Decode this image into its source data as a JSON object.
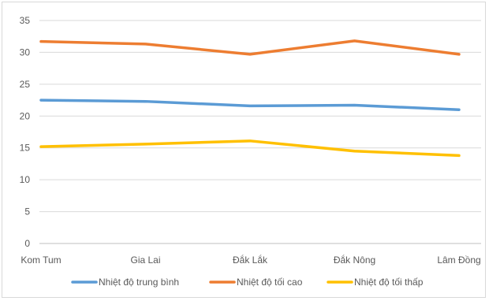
{
  "chart_data": {
    "type": "line",
    "categories": [
      "Kom Tum",
      "Gia Lai",
      "Đắk Lắk",
      "Đắk Nông",
      "Lâm Đồng"
    ],
    "series": [
      {
        "name": "Nhiệt độ trung bình",
        "values": [
          22.5,
          22.3,
          21.6,
          21.7,
          21.0
        ],
        "color": "#5B9BD5"
      },
      {
        "name": "Nhiệt độ tối cao",
        "values": [
          31.7,
          31.3,
          29.7,
          31.8,
          29.7
        ],
        "color": "#ED7D31"
      },
      {
        "name": "Nhiệt độ tối thấp",
        "values": [
          15.2,
          15.6,
          16.1,
          14.5,
          13.8
        ],
        "color": "#FFC000"
      }
    ],
    "ylim": [
      0,
      35
    ],
    "yticks": [
      0,
      5,
      10,
      15,
      20,
      25,
      30,
      35
    ],
    "grid": true,
    "legend_position": "bottom"
  }
}
